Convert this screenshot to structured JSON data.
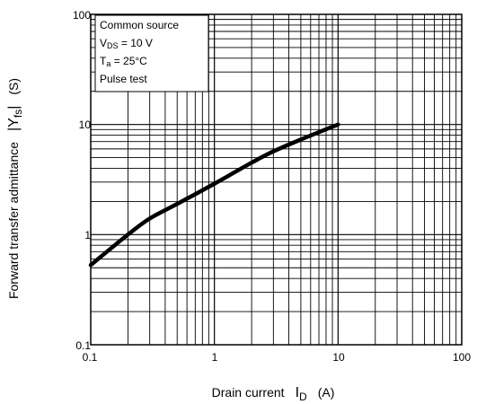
{
  "chart_data": {
    "type": "line",
    "x_scale": "log",
    "y_scale": "log",
    "xlim": [
      0.1,
      100
    ],
    "ylim": [
      0.1,
      100
    ],
    "grid": true,
    "legend": "top-left",
    "x_ticks": [
      "0.1",
      "1",
      "10",
      "100"
    ],
    "y_ticks": [
      "0.1",
      "1",
      "10",
      "100"
    ],
    "xlabel": {
      "main": "Drain current",
      "symbol": "I",
      "sub": "D",
      "unit": "(A)"
    },
    "ylabel": {
      "main": "Forward transfer admittance",
      "symbol": "|Y",
      "sub": "fs",
      "end": "|",
      "unit": "(S)"
    },
    "conditions": {
      "line1": "Common source",
      "line2": {
        "pre": "V",
        "sub": "DS",
        "post": " = 10 V"
      },
      "line3": {
        "pre": "T",
        "sub": "a",
        "post": " = 25°C"
      },
      "line4": "Pulse test"
    },
    "series": [
      {
        "x": [
          0.1,
          0.2,
          0.3,
          0.5,
          1,
          2,
          3,
          5,
          10
        ],
        "y": [
          0.53,
          1.0,
          1.4,
          1.9,
          2.9,
          4.5,
          5.7,
          7.3,
          10.0
        ]
      }
    ],
    "colors": {
      "line": "#000000",
      "grid": "#000000",
      "legend_bg": "#ffffff"
    }
  }
}
